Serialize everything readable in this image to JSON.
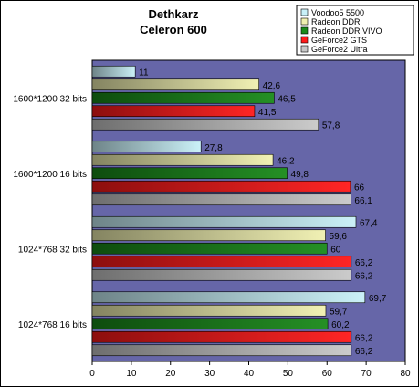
{
  "chart_data": {
    "type": "bar",
    "orientation": "horizontal",
    "title": "Dethkarz",
    "subtitle": "Celeron 600",
    "xlabel": "",
    "ylabel": "",
    "xlim": [
      0,
      80
    ],
    "xticks": [
      0,
      10,
      20,
      30,
      40,
      50,
      60,
      70,
      80
    ],
    "grid": false,
    "legend_position": "top-right",
    "categories": [
      "1600*1200 32 bits",
      "1600*1200 16 bits",
      "1024*768 32 bits",
      "1024*768 16 bits"
    ],
    "series": [
      {
        "name": "Voodoo5 5500",
        "color": "#c8f0f8",
        "values": [
          11,
          27.8,
          67.4,
          69.7
        ],
        "labels": [
          "11",
          "27,8",
          "67,4",
          "69,7"
        ]
      },
      {
        "name": "Radeon DDR",
        "color": "#f0f0b0",
        "values": [
          42.6,
          46.2,
          59.6,
          59.7
        ],
        "labels": [
          "42,6",
          "46,2",
          "59,6",
          "59,7"
        ]
      },
      {
        "name": "Radeon DDR VIVO",
        "color": "#1a8a1a",
        "values": [
          46.5,
          49.8,
          60,
          60.2
        ],
        "labels": [
          "46,5",
          "49,8",
          "60",
          "60,2"
        ]
      },
      {
        "name": "GeForce2 GTS",
        "color": "#ff1a1a",
        "values": [
          41.5,
          66,
          66.2,
          66.2
        ],
        "labels": [
          "41,5",
          "66",
          "66,2",
          "66,2"
        ]
      },
      {
        "name": "GeForce2 Ultra",
        "color": "#c8c8c8",
        "values": [
          57.8,
          66.1,
          66.2,
          66.2
        ],
        "labels": [
          "57,8",
          "66,1",
          "66,2",
          "66,2"
        ]
      }
    ],
    "colors": {
      "plot_background": "#6666a8",
      "page_background": "#ffffff"
    }
  }
}
